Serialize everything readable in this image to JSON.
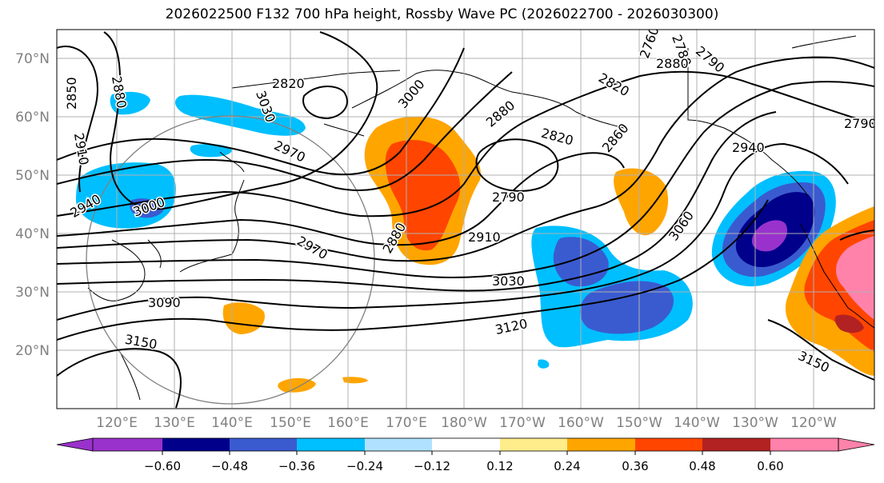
{
  "title": "2026022500 F132 700 hPa height, Rossby Wave PC (2026022700 - 2026030300)",
  "lat_labels": [
    "70°N",
    "60°N",
    "50°N",
    "40°N",
    "30°N",
    "20°N"
  ],
  "lon_labels": [
    "120°E",
    "130°E",
    "140°E",
    "150°E",
    "160°E",
    "170°E",
    "180°W",
    "170°W",
    "160°W",
    "150°W",
    "140°W",
    "130°W",
    "120°W"
  ],
  "contour_labels": [
    "2850",
    "2880",
    "3030",
    "3000",
    "2880",
    "2820",
    "2760",
    "2780",
    "2790",
    "2820",
    "2790",
    "2910",
    "2940",
    "3000",
    "2970",
    "2820",
    "2880",
    "2860",
    "2940",
    "2790",
    "2970",
    "2880",
    "2910",
    "3060",
    "3030",
    "3090",
    "3120",
    "3150",
    "3150"
  ],
  "colorbar": {
    "tick_labels": [
      "−0.60",
      "−0.48",
      "−0.36",
      "−0.24",
      "−0.12",
      "0.12",
      "0.24",
      "0.36",
      "0.48",
      "0.60"
    ],
    "colors": [
      "#9932cc",
      "#00008b",
      "#3a5bd0",
      "#00bfff",
      "#b0e2ff",
      "#ffffff",
      "#ffec8b",
      "#ffa500",
      "#ff4500",
      "#b22222",
      "#ff82ab"
    ]
  },
  "colors": {
    "pos_1": "#ffa500",
    "pos_2": "#ff4500",
    "pos_3": "#b22222",
    "pos_4": "#ff82ab",
    "neg_1": "#00bfff",
    "neg_2": "#3a5bd0",
    "neg_3": "#00008b",
    "neg_4": "#9932cc",
    "contour": "#000000",
    "grid": "#b0b0b0",
    "axis_label": "#808080"
  }
}
